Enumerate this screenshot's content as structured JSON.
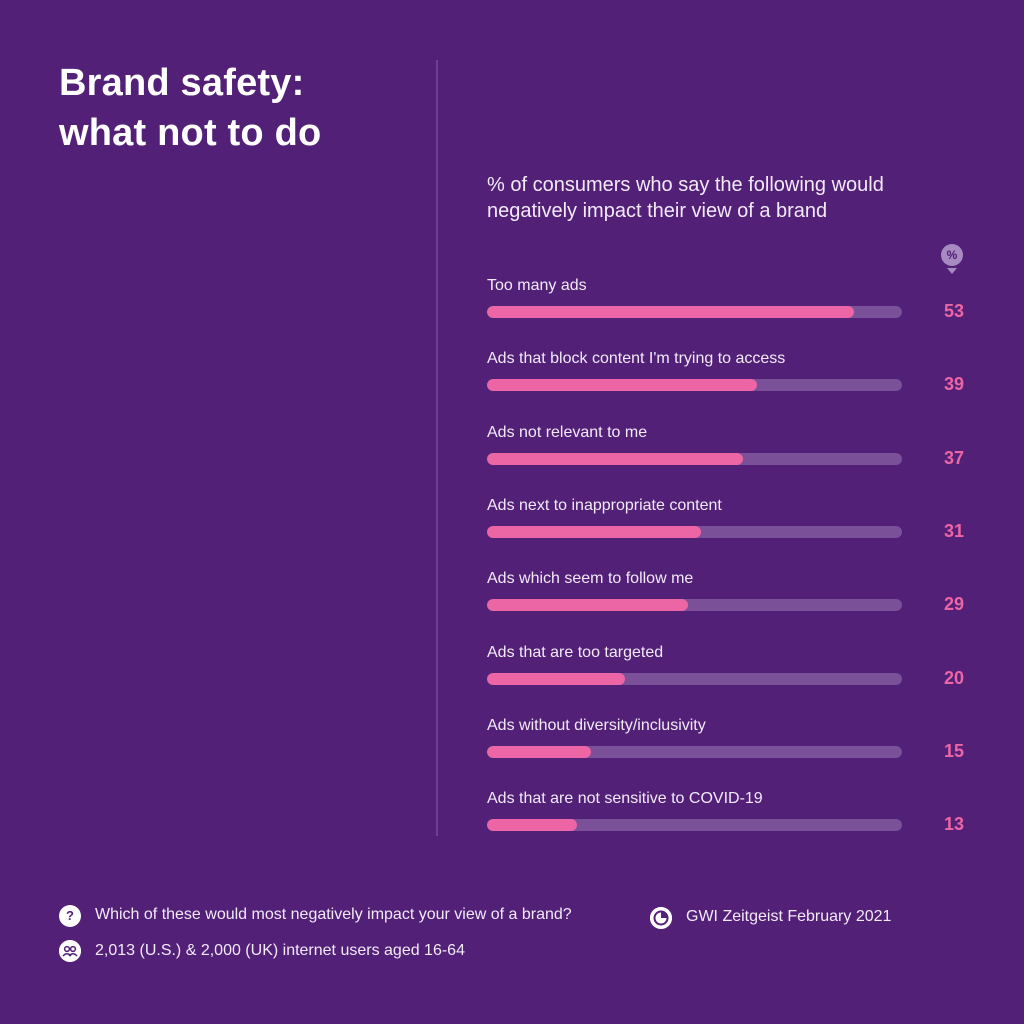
{
  "header": {
    "title_line1": "Brand safety:",
    "title_line2": "what not to do"
  },
  "chart_data": {
    "type": "bar",
    "orientation": "horizontal",
    "title": "% of consumers who say the following would negatively impact their view of a brand",
    "unit_badge": "%",
    "xlim": [
      0,
      60
    ],
    "categories": [
      "Too many ads",
      "Ads that block content I'm trying to access",
      "Ads not relevant to me",
      "Ads next to inappropriate content",
      "Ads which seem to follow me",
      "Ads that are too targeted",
      "Ads without diversity/inclusivity",
      "Ads that are not sensitive to COVID-19"
    ],
    "values": [
      53,
      39,
      37,
      31,
      29,
      20,
      15,
      13
    ],
    "colors": {
      "bar": "#ec65a4",
      "track": "#7a5099",
      "background": "#522077"
    }
  },
  "footer": {
    "question": "Which of these would most negatively impact your view of a brand?",
    "question_icon": "question-icon",
    "source": "GWI Zeitgeist February 2021",
    "source_icon": "gwi-logo-icon",
    "sample": "2,013 (U.S.) & 2,000 (UK) internet users aged 16-64",
    "sample_icon": "people-icon"
  }
}
